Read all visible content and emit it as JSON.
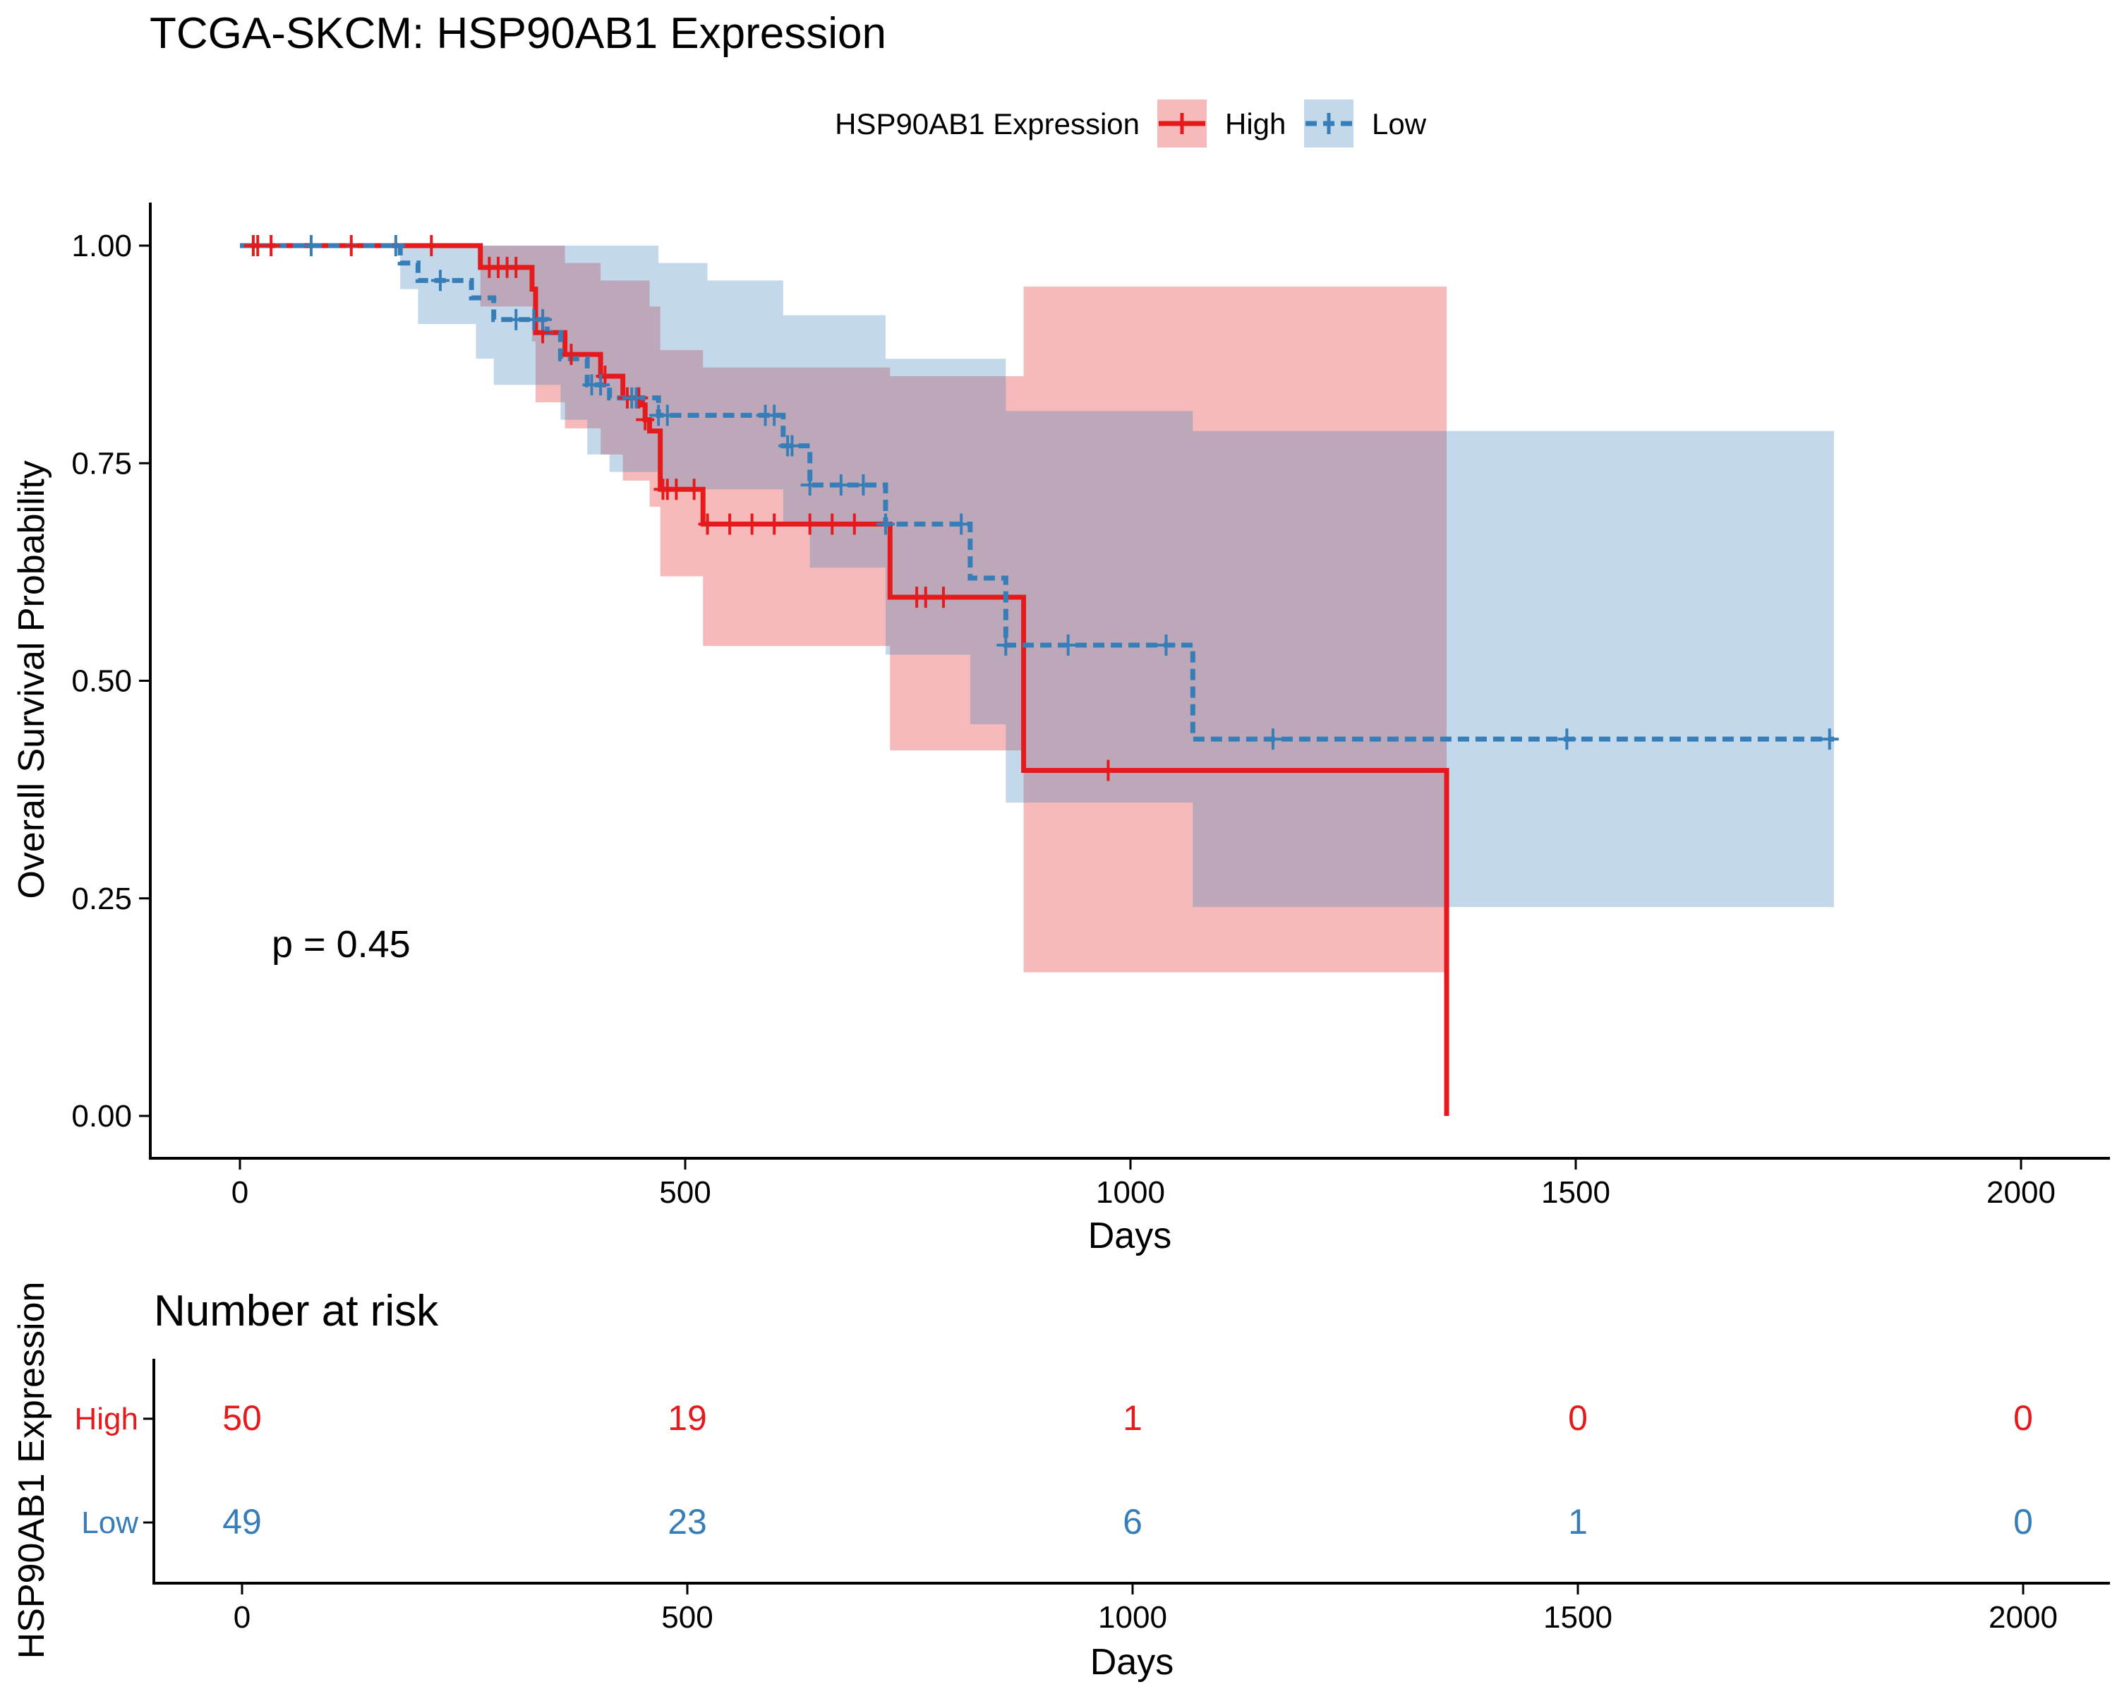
{
  "chart_data": [
    {
      "type": "line",
      "subtype": "kaplan-meier",
      "title": "TCGA-SKCM: HSP90AB1 Expression",
      "xlabel": "Days",
      "ylabel": "Overall Survival Probability",
      "xlim": [
        -100,
        2100
      ],
      "ylim": [
        -0.05,
        1.05
      ],
      "x_ticks": [
        "0",
        "500",
        "1000",
        "1500",
        "2000"
      ],
      "y_ticks": [
        "0.00",
        "0.25",
        "0.50",
        "0.75",
        "1.00"
      ],
      "grid": false,
      "legend": {
        "title": "HSP90AB1 Expression",
        "placement": "top",
        "entries": [
          "High",
          "Low"
        ]
      },
      "annotation": "p = 0.45",
      "colors": {
        "High": "#E41A1C",
        "Low": "#377EB8"
      },
      "series": [
        {
          "name": "High",
          "line_style": "solid",
          "steps": [
            [
              0,
              1.0
            ],
            [
              270,
              0.975
            ],
            [
              328,
              0.95
            ],
            [
              332,
              0.9
            ],
            [
              365,
              0.875
            ],
            [
              405,
              0.85
            ],
            [
              430,
              0.825
            ],
            [
              452,
              0.817
            ],
            [
              455,
              0.8
            ],
            [
              460,
              0.787
            ],
            [
              472,
              0.72
            ],
            [
              520,
              0.68
            ],
            [
              730,
              0.596
            ],
            [
              880,
              0.397
            ],
            [
              1355,
              0.397
            ],
            [
              1355,
              0.0
            ]
          ],
          "ci_lower": [
            [
              0,
              1.0
            ],
            [
              270,
              0.93
            ],
            [
              328,
              0.89
            ],
            [
              332,
              0.82
            ],
            [
              365,
              0.79
            ],
            [
              405,
              0.76
            ],
            [
              430,
              0.73
            ],
            [
              460,
              0.7
            ],
            [
              472,
              0.62
            ],
            [
              520,
              0.54
            ],
            [
              730,
              0.42
            ],
            [
              880,
              0.165
            ],
            [
              1355,
              0.165
            ]
          ],
          "ci_upper": [
            [
              0,
              1.0
            ],
            [
              270,
              1.0
            ],
            [
              365,
              0.98
            ],
            [
              405,
              0.96
            ],
            [
              460,
              0.93
            ],
            [
              472,
              0.88
            ],
            [
              520,
              0.86
            ],
            [
              730,
              0.85
            ],
            [
              880,
              0.953
            ],
            [
              1355,
              0.953
            ]
          ],
          "censor_x": [
            15,
            20,
            35,
            125,
            215,
            280,
            290,
            300,
            310,
            340,
            372,
            410,
            435,
            448,
            455,
            475,
            480,
            490,
            510,
            525,
            550,
            575,
            600,
            640,
            665,
            690,
            760,
            770,
            790,
            975
          ]
        },
        {
          "name": "Low",
          "line_style": "dashed",
          "steps": [
            [
              0,
              1.0
            ],
            [
              180,
              0.98
            ],
            [
              200,
              0.96
            ],
            [
              260,
              0.94
            ],
            [
              285,
              0.915
            ],
            [
              345,
              0.9
            ],
            [
              360,
              0.87
            ],
            [
              390,
              0.84
            ],
            [
              415,
              0.825
            ],
            [
              470,
              0.805
            ],
            [
              610,
              0.77
            ],
            [
              640,
              0.725
            ],
            [
              725,
              0.68
            ],
            [
              820,
              0.618
            ],
            [
              860,
              0.541
            ],
            [
              1070,
              0.433
            ],
            [
              1790,
              0.433
            ]
          ],
          "ci_lower": [
            [
              0,
              1.0
            ],
            [
              180,
              0.95
            ],
            [
              200,
              0.91
            ],
            [
              265,
              0.87
            ],
            [
              285,
              0.84
            ],
            [
              360,
              0.8
            ],
            [
              390,
              0.76
            ],
            [
              415,
              0.74
            ],
            [
              470,
              0.72
            ],
            [
              610,
              0.68
            ],
            [
              640,
              0.63
            ],
            [
              725,
              0.53
            ],
            [
              820,
              0.45
            ],
            [
              860,
              0.36
            ],
            [
              1070,
              0.24
            ],
            [
              1790,
              0.24
            ]
          ],
          "ci_upper": [
            [
              0,
              1.0
            ],
            [
              470,
              0.98
            ],
            [
              525,
              0.96
            ],
            [
              610,
              0.92
            ],
            [
              725,
              0.87
            ],
            [
              860,
              0.81
            ],
            [
              1070,
              0.787
            ],
            [
              1790,
              0.787
            ]
          ],
          "censor_x": [
            80,
            175,
            225,
            310,
            330,
            340,
            395,
            405,
            440,
            445,
            470,
            480,
            590,
            600,
            615,
            620,
            640,
            675,
            700,
            725,
            810,
            860,
            930,
            1040,
            1160,
            1490,
            1785
          ]
        }
      ]
    },
    {
      "type": "table",
      "title": "Number at risk",
      "xlabel": "Days",
      "ylabel": "HSP90AB1 Expression",
      "x_ticks": [
        "0",
        "500",
        "1000",
        "1500",
        "2000"
      ],
      "x": [
        0,
        500,
        1000,
        1500,
        2000
      ],
      "rows": [
        {
          "name": "High",
          "color": "#E41A1C",
          "values": [
            "50",
            "19",
            "1",
            "0",
            "0"
          ]
        },
        {
          "name": "Low",
          "color": "#377EB8",
          "values": [
            "49",
            "23",
            "6",
            "1",
            "0"
          ]
        }
      ]
    }
  ]
}
